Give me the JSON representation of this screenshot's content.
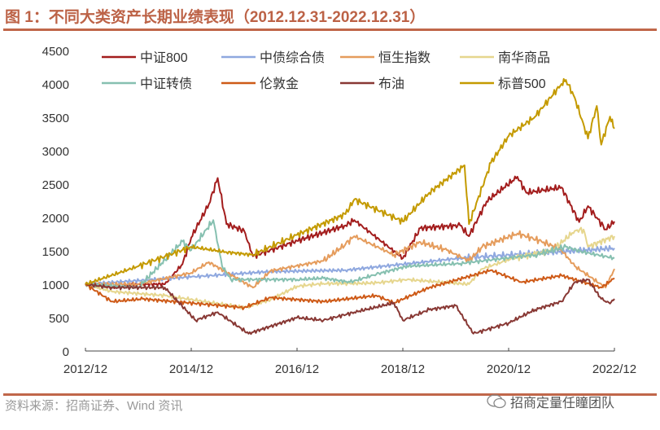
{
  "title": "图 1：不同大类资产长期业绩表现（2012.12.31-2022.12.31）",
  "source": "资料来源：招商证券、Wind 资讯",
  "watermark": "招商定量任瞳团队",
  "chart_data": {
    "type": "line",
    "title": "",
    "xlabel": "",
    "ylabel": "",
    "ylim": [
      0,
      4500
    ],
    "yticks": [
      "0",
      "500",
      "1000",
      "1500",
      "2000",
      "2500",
      "3000",
      "3500",
      "4000",
      "4500"
    ],
    "xlim": [
      "2012-12",
      "2022-12"
    ],
    "xticks": [
      "2012/12",
      "2014/12",
      "2016/12",
      "2018/12",
      "2020/12",
      "2022/12"
    ],
    "grid": false,
    "legend": "top",
    "series": [
      {
        "name": "中证800",
        "color": "#A31D1D",
        "points": [
          [
            "2012-12",
            1000
          ],
          [
            "2013-06",
            950
          ],
          [
            "2013-12",
            1000
          ],
          [
            "2014-06",
            1000
          ],
          [
            "2014-10",
            1300
          ],
          [
            "2014-12",
            1700
          ],
          [
            "2015-04",
            2200
          ],
          [
            "2015-06",
            2590
          ],
          [
            "2015-08",
            1900
          ],
          [
            "2015-12",
            1800
          ],
          [
            "2016-02",
            1420
          ],
          [
            "2016-12",
            1650
          ],
          [
            "2017-11",
            1880
          ],
          [
            "2018-01",
            1960
          ],
          [
            "2018-12",
            1390
          ],
          [
            "2019-04",
            1840
          ],
          [
            "2020-01",
            1880
          ],
          [
            "2020-03",
            1720
          ],
          [
            "2020-07",
            2240
          ],
          [
            "2021-02",
            2610
          ],
          [
            "2021-04",
            2370
          ],
          [
            "2021-12",
            2450
          ],
          [
            "2022-04",
            1930
          ],
          [
            "2022-06",
            2170
          ],
          [
            "2022-10",
            1820
          ],
          [
            "2022-12",
            1940
          ]
        ]
      },
      {
        "name": "中债综合债",
        "color": "#8FA8DF",
        "points": [
          [
            "2012-12",
            1000
          ],
          [
            "2014-12",
            1110
          ],
          [
            "2016-06",
            1190
          ],
          [
            "2017-11",
            1210
          ],
          [
            "2020-01",
            1390
          ],
          [
            "2022-12",
            1540
          ]
        ]
      },
      {
        "name": "恒生指数",
        "color": "#E59C5C",
        "points": [
          [
            "2012-12",
            1000
          ],
          [
            "2013-12",
            1000
          ],
          [
            "2014-12",
            1170
          ],
          [
            "2015-04",
            1330
          ],
          [
            "2016-02",
            950
          ],
          [
            "2016-06",
            1200
          ],
          [
            "2017-06",
            1350
          ],
          [
            "2017-11",
            1600
          ],
          [
            "2018-01",
            1720
          ],
          [
            "2018-10",
            1440
          ],
          [
            "2019-04",
            1630
          ],
          [
            "2019-10",
            1510
          ],
          [
            "2020-03",
            1350
          ],
          [
            "2020-06",
            1560
          ],
          [
            "2021-02",
            1760
          ],
          [
            "2021-08",
            1630
          ],
          [
            "2021-12",
            1510
          ],
          [
            "2022-03",
            1270
          ],
          [
            "2022-10",
            950
          ],
          [
            "2022-12",
            1230
          ]
        ]
      },
      {
        "name": "南华商品",
        "color": "#E6D68E",
        "points": [
          [
            "2012-12",
            1000
          ],
          [
            "2013-06",
            890
          ],
          [
            "2014-06",
            830
          ],
          [
            "2015-12",
            650
          ],
          [
            "2016-06",
            770
          ],
          [
            "2016-12",
            970
          ],
          [
            "2017-06",
            1010
          ],
          [
            "2017-12",
            1010
          ],
          [
            "2018-06",
            1020
          ],
          [
            "2019-01",
            1070
          ],
          [
            "2020-03",
            1000
          ],
          [
            "2020-06",
            1230
          ],
          [
            "2021-01",
            1390
          ],
          [
            "2021-10",
            1510
          ],
          [
            "2022-03",
            1800
          ],
          [
            "2022-05",
            1820
          ],
          [
            "2022-06",
            1560
          ],
          [
            "2022-12",
            1720
          ]
        ]
      },
      {
        "name": "中证转债",
        "color": "#86C0B0",
        "points": [
          [
            "2012-12",
            1000
          ],
          [
            "2013-12",
            950
          ],
          [
            "2014-10",
            1640
          ],
          [
            "2014-12",
            1510
          ],
          [
            "2015-05",
            1960
          ],
          [
            "2015-07",
            1270
          ],
          [
            "2015-09",
            1070
          ],
          [
            "2016-12",
            1070
          ],
          [
            "2017-06",
            1090
          ],
          [
            "2017-12",
            1030
          ],
          [
            "2018-06",
            1150
          ],
          [
            "2019-01",
            1270
          ],
          [
            "2020-01",
            1310
          ],
          [
            "2021-06",
            1440
          ],
          [
            "2022-01",
            1560
          ],
          [
            "2022-05",
            1480
          ],
          [
            "2022-12",
            1390
          ]
        ]
      },
      {
        "name": "伦敦金",
        "color": "#CE5A17",
        "points": [
          [
            "2012-12",
            1000
          ],
          [
            "2013-06",
            740
          ],
          [
            "2014-01",
            780
          ],
          [
            "2015-12",
            650
          ],
          [
            "2016-06",
            800
          ],
          [
            "2017-06",
            740
          ],
          [
            "2018-06",
            830
          ],
          [
            "2018-10",
            720
          ],
          [
            "2019-06",
            950
          ],
          [
            "2020-08",
            1210
          ],
          [
            "2021-03",
            1030
          ],
          [
            "2021-12",
            1130
          ],
          [
            "2022-09",
            950
          ],
          [
            "2022-12",
            1090
          ]
        ]
      },
      {
        "name": "布油",
        "color": "#883834",
        "points": [
          [
            "2012-12",
            1000
          ],
          [
            "2013-06",
            950
          ],
          [
            "2014-06",
            950
          ],
          [
            "2015-01",
            460
          ],
          [
            "2015-06",
            580
          ],
          [
            "2016-01",
            260
          ],
          [
            "2016-12",
            500
          ],
          [
            "2017-06",
            460
          ],
          [
            "2018-01",
            580
          ],
          [
            "2018-10",
            720
          ],
          [
            "2018-12",
            460
          ],
          [
            "2019-06",
            620
          ],
          [
            "2019-12",
            680
          ],
          [
            "2020-04",
            260
          ],
          [
            "2020-12",
            420
          ],
          [
            "2021-06",
            620
          ],
          [
            "2021-12",
            740
          ],
          [
            "2022-03",
            1030
          ],
          [
            "2022-06",
            1070
          ],
          [
            "2022-09",
            780
          ],
          [
            "2022-11",
            710
          ],
          [
            "2022-12",
            780
          ]
        ]
      },
      {
        "name": "标普500",
        "color": "#C49A00",
        "points": [
          [
            "2012-12",
            1000
          ],
          [
            "2013-12",
            1270
          ],
          [
            "2014-12",
            1560
          ],
          [
            "2015-08",
            1480
          ],
          [
            "2016-02",
            1440
          ],
          [
            "2016-12",
            1740
          ],
          [
            "2017-11",
            2050
          ],
          [
            "2018-01",
            2270
          ],
          [
            "2018-12",
            1940
          ],
          [
            "2019-06",
            2370
          ],
          [
            "2020-02",
            2780
          ],
          [
            "2020-03",
            1900
          ],
          [
            "2020-08",
            2820
          ],
          [
            "2020-12",
            3220
          ],
          [
            "2021-06",
            3510
          ],
          [
            "2021-12",
            4000
          ],
          [
            "2022-01",
            4060
          ],
          [
            "2022-03",
            3790
          ],
          [
            "2022-06",
            3180
          ],
          [
            "2022-08",
            3670
          ],
          [
            "2022-09",
            3090
          ],
          [
            "2022-11",
            3510
          ],
          [
            "2022-12",
            3330
          ]
        ]
      }
    ]
  }
}
